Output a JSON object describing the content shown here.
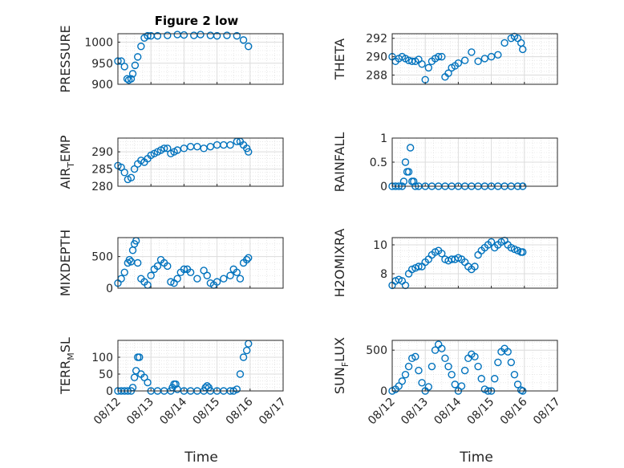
{
  "figure": {
    "title": "Figure 2 low",
    "xlabel": "Time"
  },
  "chart_data": [
    {
      "type": "scatter",
      "ylabel": "PRESSURE",
      "ylim": [
        900,
        1020
      ],
      "yticks": [
        900,
        950,
        1000
      ],
      "xlim": [
        0,
        5
      ],
      "xticks": [
        "08/12",
        "08/13",
        "08/14",
        "08/15",
        "08/16",
        "08/17"
      ],
      "show_xticks": false,
      "grid": true,
      "color": "#0072bd",
      "x": [
        0,
        0.1,
        0.2,
        0.28,
        0.33,
        0.4,
        0.45,
        0.52,
        0.6,
        0.7,
        0.8,
        0.9,
        1.0,
        1.2,
        1.5,
        1.8,
        2.0,
        2.3,
        2.5,
        2.8,
        3.0,
        3.3,
        3.6,
        3.8,
        3.95
      ],
      "y": [
        955,
        955,
        942,
        913,
        910,
        913,
        925,
        945,
        965,
        990,
        1010,
        1015,
        1015,
        1015,
        1016,
        1018,
        1017,
        1016,
        1018,
        1016,
        1015,
        1016,
        1015,
        1005,
        990
      ]
    },
    {
      "type": "scatter",
      "ylabel": "THETA",
      "ylim": [
        287,
        292.5
      ],
      "yticks": [
        288,
        290,
        292
      ],
      "xlim": [
        0,
        5
      ],
      "xticks": [
        "08/12",
        "08/13",
        "08/14",
        "08/15",
        "08/16",
        "08/17"
      ],
      "show_xticks": false,
      "grid": true,
      "color": "#0072bd",
      "x": [
        0,
        0.1,
        0.2,
        0.3,
        0.4,
        0.5,
        0.6,
        0.7,
        0.8,
        0.9,
        1.0,
        1.1,
        1.2,
        1.3,
        1.4,
        1.5,
        1.6,
        1.7,
        1.8,
        1.9,
        2.0,
        2.2,
        2.4,
        2.6,
        2.8,
        3.0,
        3.2,
        3.4,
        3.6,
        3.7,
        3.8,
        3.9,
        3.95
      ],
      "y": [
        290,
        289.5,
        289.8,
        290,
        289.8,
        289.6,
        289.5,
        289.5,
        289.7,
        289.2,
        287.5,
        288.8,
        289.5,
        289.8,
        290,
        290,
        287.8,
        288.2,
        288.8,
        289,
        289.3,
        289.6,
        290.5,
        289.5,
        289.8,
        290.0,
        290.2,
        291.5,
        292,
        292.2,
        292,
        291.5,
        290.8
      ]
    },
    {
      "type": "scatter",
      "ylabel": "AIR_TEMP",
      "ylim": [
        280,
        294
      ],
      "yticks": [
        280,
        285,
        290
      ],
      "xlim": [
        0,
        5
      ],
      "xticks": [
        "08/12",
        "08/13",
        "08/14",
        "08/15",
        "08/16",
        "08/17"
      ],
      "show_xticks": false,
      "grid": true,
      "color": "#0072bd",
      "x": [
        0,
        0.1,
        0.2,
        0.3,
        0.4,
        0.5,
        0.6,
        0.7,
        0.8,
        0.9,
        1.0,
        1.1,
        1.2,
        1.3,
        1.4,
        1.5,
        1.6,
        1.7,
        1.8,
        2.0,
        2.2,
        2.4,
        2.6,
        2.8,
        3.0,
        3.2,
        3.4,
        3.6,
        3.7,
        3.8,
        3.9,
        3.95
      ],
      "y": [
        286,
        285.5,
        284,
        282,
        282.5,
        285,
        286.5,
        287.5,
        287,
        288,
        289,
        289.5,
        290,
        290.5,
        291,
        291,
        289.5,
        290,
        290.5,
        291,
        291.5,
        291.5,
        291,
        291.5,
        292,
        292,
        292,
        293,
        293,
        292,
        291,
        290
      ]
    },
    {
      "type": "scatter",
      "ylabel": "RAINFALL",
      "ylim": [
        0,
        1
      ],
      "yticks": [
        0,
        0.5,
        1
      ],
      "xlim": [
        0,
        5
      ],
      "xticks": [
        "08/12",
        "08/13",
        "08/14",
        "08/15",
        "08/16",
        "08/17"
      ],
      "show_xticks": false,
      "grid": true,
      "color": "#0072bd",
      "x": [
        0,
        0.1,
        0.2,
        0.3,
        0.35,
        0.4,
        0.45,
        0.5,
        0.55,
        0.6,
        0.65,
        0.7,
        0.8,
        1.0,
        1.2,
        1.4,
        1.6,
        1.8,
        2.0,
        2.2,
        2.4,
        2.6,
        2.8,
        3.0,
        3.2,
        3.4,
        3.6,
        3.8,
        3.95
      ],
      "y": [
        0,
        0,
        0,
        0,
        0.1,
        0.5,
        0.3,
        0.3,
        0.8,
        0.1,
        0.1,
        0,
        0,
        0,
        0,
        0,
        0,
        0,
        0,
        0,
        0,
        0,
        0,
        0,
        0,
        0,
        0,
        0,
        0
      ]
    },
    {
      "type": "scatter",
      "ylabel": "MIXDEPTH",
      "ylim": [
        0,
        800
      ],
      "yticks": [
        0,
        500
      ],
      "xlim": [
        0,
        5
      ],
      "xticks": [
        "08/12",
        "08/13",
        "08/14",
        "08/15",
        "08/16",
        "08/17"
      ],
      "show_xticks": false,
      "grid": true,
      "color": "#0072bd",
      "x": [
        0,
        0.1,
        0.2,
        0.3,
        0.35,
        0.4,
        0.45,
        0.5,
        0.55,
        0.6,
        0.7,
        0.8,
        0.9,
        1.0,
        1.1,
        1.2,
        1.3,
        1.4,
        1.5,
        1.6,
        1.7,
        1.8,
        1.9,
        2.0,
        2.1,
        2.2,
        2.4,
        2.6,
        2.7,
        2.8,
        2.9,
        3.0,
        3.2,
        3.4,
        3.5,
        3.6,
        3.7,
        3.8,
        3.9,
        3.95
      ],
      "y": [
        80,
        150,
        250,
        400,
        450,
        420,
        600,
        700,
        750,
        400,
        150,
        100,
        50,
        200,
        300,
        350,
        450,
        400,
        350,
        100,
        80,
        150,
        250,
        300,
        300,
        250,
        150,
        280,
        200,
        80,
        50,
        100,
        150,
        200,
        300,
        250,
        150,
        400,
        450,
        480
      ]
    },
    {
      "type": "scatter",
      "ylabel": "H2OMIXRA",
      "ylim": [
        7,
        10.5
      ],
      "yticks": [
        8,
        10
      ],
      "xlim": [
        0,
        5
      ],
      "xticks": [
        "08/12",
        "08/13",
        "08/14",
        "08/15",
        "08/16",
        "08/17"
      ],
      "show_xticks": false,
      "grid": true,
      "color": "#0072bd",
      "x": [
        0,
        0.1,
        0.2,
        0.3,
        0.4,
        0.5,
        0.6,
        0.7,
        0.8,
        0.9,
        1.0,
        1.1,
        1.2,
        1.3,
        1.4,
        1.5,
        1.6,
        1.7,
        1.8,
        1.9,
        2.0,
        2.1,
        2.2,
        2.3,
        2.4,
        2.5,
        2.6,
        2.7,
        2.8,
        2.9,
        3.0,
        3.1,
        3.2,
        3.3,
        3.4,
        3.5,
        3.6,
        3.7,
        3.8,
        3.9,
        3.95
      ],
      "y": [
        7.2,
        7.5,
        7.6,
        7.5,
        7.2,
        8.0,
        8.3,
        8.4,
        8.5,
        8.5,
        8.8,
        9.0,
        9.3,
        9.5,
        9.6,
        9.4,
        9.0,
        8.9,
        9.0,
        9.0,
        9.1,
        9.0,
        8.8,
        8.5,
        8.3,
        8.5,
        9.3,
        9.6,
        9.8,
        10.0,
        10.2,
        9.8,
        10.0,
        10.2,
        10.3,
        10.0,
        9.8,
        9.7,
        9.6,
        9.5,
        9.5
      ]
    },
    {
      "type": "scatter",
      "ylabel": "TERR_MSL",
      "ylim": [
        0,
        150
      ],
      "yticks": [
        0,
        50,
        100
      ],
      "xlim": [
        0,
        5
      ],
      "xticks": [
        "08/12",
        "08/13",
        "08/14",
        "08/15",
        "08/16",
        "08/17"
      ],
      "show_xticks": true,
      "grid": true,
      "color": "#0072bd",
      "x": [
        0,
        0.1,
        0.2,
        0.3,
        0.4,
        0.45,
        0.5,
        0.55,
        0.6,
        0.65,
        0.7,
        0.8,
        0.9,
        1.0,
        1.2,
        1.4,
        1.6,
        1.65,
        1.7,
        1.75,
        1.8,
        2.0,
        2.2,
        2.4,
        2.6,
        2.65,
        2.7,
        2.75,
        2.8,
        3.0,
        3.2,
        3.4,
        3.5,
        3.6,
        3.7,
        3.8,
        3.9,
        3.95
      ],
      "y": [
        0,
        0,
        0,
        0,
        0,
        10,
        40,
        60,
        100,
        100,
        50,
        40,
        25,
        0,
        0,
        0,
        0,
        10,
        20,
        20,
        5,
        0,
        0,
        0,
        0,
        10,
        15,
        10,
        0,
        0,
        0,
        0,
        0,
        5,
        50,
        100,
        120,
        140
      ]
    },
    {
      "type": "scatter",
      "ylabel": "SUN_FLUX",
      "ylim": [
        0,
        620
      ],
      "yticks": [
        0,
        500
      ],
      "xlim": [
        0,
        5
      ],
      "xticks": [
        "08/12",
        "08/13",
        "08/14",
        "08/15",
        "08/16",
        "08/17"
      ],
      "show_xticks": true,
      "grid": true,
      "color": "#0072bd",
      "x": [
        0,
        0.1,
        0.2,
        0.3,
        0.4,
        0.5,
        0.6,
        0.7,
        0.8,
        0.9,
        1.0,
        1.1,
        1.2,
        1.3,
        1.4,
        1.5,
        1.6,
        1.7,
        1.8,
        1.9,
        2.0,
        2.1,
        2.2,
        2.3,
        2.4,
        2.5,
        2.6,
        2.7,
        2.8,
        2.9,
        3.0,
        3.1,
        3.2,
        3.3,
        3.4,
        3.5,
        3.6,
        3.7,
        3.8,
        3.9,
        3.95
      ],
      "y": [
        0,
        20,
        60,
        120,
        200,
        300,
        400,
        420,
        250,
        100,
        0,
        50,
        300,
        500,
        570,
        520,
        400,
        300,
        200,
        80,
        0,
        60,
        250,
        400,
        450,
        420,
        300,
        150,
        20,
        0,
        0,
        150,
        350,
        480,
        520,
        480,
        350,
        200,
        80,
        10,
        0
      ]
    }
  ]
}
